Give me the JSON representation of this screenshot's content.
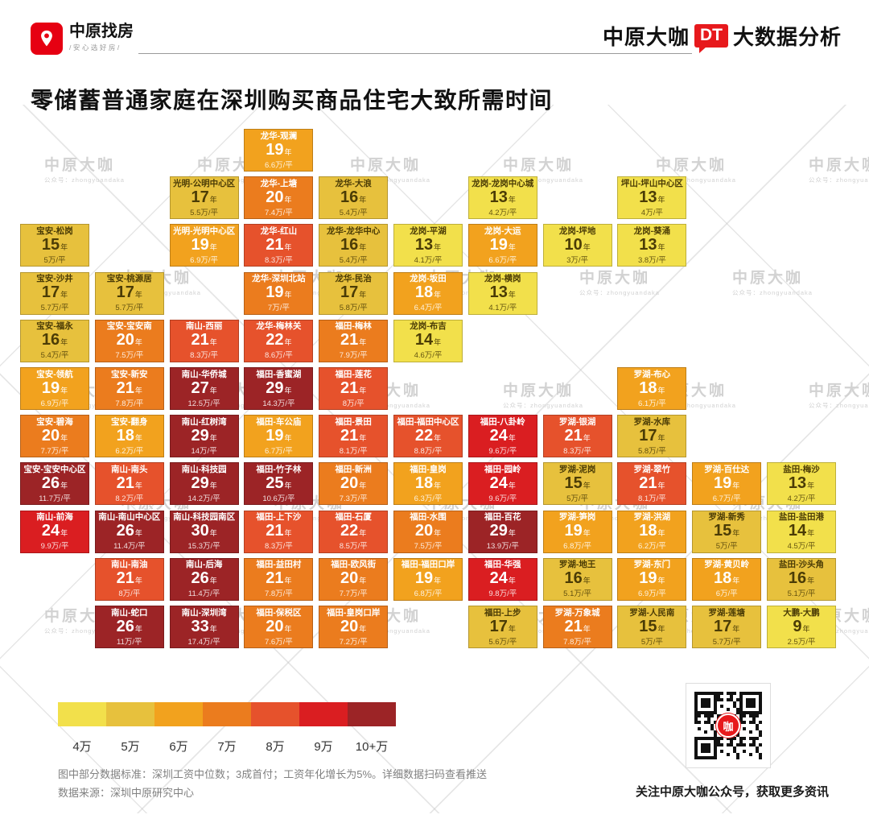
{
  "header": {
    "logo_text": "中原找房",
    "logo_tagline": "/安心选好房/",
    "brand_part1": "中原大咖",
    "brand_dt": "DT",
    "brand_part2": "大数据分析",
    "title": "零储蓄普通家庭在深圳购买商品住宅大致所需时间"
  },
  "watermark": {
    "line1": "中原大咖",
    "line2": "公众号：zhongyuandaka"
  },
  "chart_data": {
    "type": "heatmap",
    "title": "零储蓄普通家庭在深圳购买商品住宅大致所需时间",
    "description": "Tile cartogram of Shenzhen districts: years needed to buy a home (zero savings) and price per square meter",
    "units": {
      "years": "年",
      "price": "万/平"
    },
    "grid": {
      "rows": 11,
      "cols": 11
    },
    "buckets": [
      {
        "label": "4万",
        "color": "#F2E04B",
        "text": "#4b3c06"
      },
      {
        "label": "5万",
        "color": "#E7C13D",
        "text": "#4b3c06"
      },
      {
        "label": "6万",
        "color": "#F2A21E",
        "text": "#ffffff"
      },
      {
        "label": "7万",
        "color": "#EB7C1E",
        "text": "#ffffff"
      },
      {
        "label": "8万",
        "color": "#E6522C",
        "text": "#ffffff"
      },
      {
        "label": "9万",
        "color": "#DA1E21",
        "text": "#ffffff"
      },
      {
        "label": "10+万",
        "color": "#9C2426",
        "text": "#ffffff"
      }
    ],
    "tiles": [
      {
        "row": 1,
        "col": 4,
        "name": "龙华-观澜",
        "years": "19",
        "price": "6.6万/平",
        "bucket": 2
      },
      {
        "row": 2,
        "col": 3,
        "name": "光明-公明中心区",
        "years": "17",
        "price": "5.5万/平",
        "bucket": 1
      },
      {
        "row": 2,
        "col": 4,
        "name": "龙华-上塘",
        "years": "20",
        "price": "7.4万/平",
        "bucket": 3
      },
      {
        "row": 2,
        "col": 5,
        "name": "龙华-大浪",
        "years": "16",
        "price": "5.4万/平",
        "bucket": 1
      },
      {
        "row": 2,
        "col": 7,
        "name": "龙岗-龙岗中心城",
        "years": "13",
        "price": "4.2万/平",
        "bucket": 0
      },
      {
        "row": 2,
        "col": 9,
        "name": "坪山-坪山中心区",
        "years": "13",
        "price": "4万/平",
        "bucket": 0
      },
      {
        "row": 3,
        "col": 1,
        "name": "宝安-松岗",
        "years": "15",
        "price": "5万/平",
        "bucket": 1
      },
      {
        "row": 3,
        "col": 3,
        "name": "光明-光明中心区",
        "years": "19",
        "price": "6.9万/平",
        "bucket": 2
      },
      {
        "row": 3,
        "col": 4,
        "name": "龙华-红山",
        "years": "21",
        "price": "8.3万/平",
        "bucket": 4
      },
      {
        "row": 3,
        "col": 5,
        "name": "龙华-龙华中心",
        "years": "16",
        "price": "5.4万/平",
        "bucket": 1
      },
      {
        "row": 3,
        "col": 6,
        "name": "龙岗-平湖",
        "years": "13",
        "price": "4.1万/平",
        "bucket": 0
      },
      {
        "row": 3,
        "col": 7,
        "name": "龙岗-大运",
        "years": "19",
        "price": "6.6万/平",
        "bucket": 2
      },
      {
        "row": 3,
        "col": 8,
        "name": "龙岗-坪地",
        "years": "10",
        "price": "3万/平",
        "bucket": 0
      },
      {
        "row": 3,
        "col": 9,
        "name": "龙岗-葵涌",
        "years": "13",
        "price": "3.8万/平",
        "bucket": 0
      },
      {
        "row": 4,
        "col": 1,
        "name": "宝安-沙井",
        "years": "17",
        "price": "5.7万/平",
        "bucket": 1
      },
      {
        "row": 4,
        "col": 2,
        "name": "宝安-桃源居",
        "years": "17",
        "price": "5.7万/平",
        "bucket": 1
      },
      {
        "row": 4,
        "col": 4,
        "name": "龙华-深圳北站",
        "years": "19",
        "price": "7万/平",
        "bucket": 3
      },
      {
        "row": 4,
        "col": 5,
        "name": "龙华-民治",
        "years": "17",
        "price": "5.8万/平",
        "bucket": 1
      },
      {
        "row": 4,
        "col": 6,
        "name": "龙岗-坂田",
        "years": "18",
        "price": "6.4万/平",
        "bucket": 2
      },
      {
        "row": 4,
        "col": 7,
        "name": "龙岗-横岗",
        "years": "13",
        "price": "4.1万/平",
        "bucket": 0
      },
      {
        "row": 5,
        "col": 1,
        "name": "宝安-福永",
        "years": "16",
        "price": "5.4万/平",
        "bucket": 1
      },
      {
        "row": 5,
        "col": 2,
        "name": "宝安-宝安南",
        "years": "20",
        "price": "7.5万/平",
        "bucket": 3
      },
      {
        "row": 5,
        "col": 3,
        "name": "南山-西丽",
        "years": "21",
        "price": "8.3万/平",
        "bucket": 4
      },
      {
        "row": 5,
        "col": 4,
        "name": "龙华-梅林关",
        "years": "22",
        "price": "8.6万/平",
        "bucket": 4
      },
      {
        "row": 5,
        "col": 5,
        "name": "福田-梅林",
        "years": "21",
        "price": "7.9万/平",
        "bucket": 3
      },
      {
        "row": 5,
        "col": 6,
        "name": "龙岗-布吉",
        "years": "14",
        "price": "4.6万/平",
        "bucket": 0
      },
      {
        "row": 6,
        "col": 1,
        "name": "宝安-领航",
        "years": "19",
        "price": "6.9万/平",
        "bucket": 2
      },
      {
        "row": 6,
        "col": 2,
        "name": "宝安-新安",
        "years": "21",
        "price": "7.8万/平",
        "bucket": 3
      },
      {
        "row": 6,
        "col": 3,
        "name": "南山-华侨城",
        "years": "27",
        "price": "12.5万/平",
        "bucket": 6
      },
      {
        "row": 6,
        "col": 4,
        "name": "福田-香蜜湖",
        "years": "29",
        "price": "14.3万/平",
        "bucket": 6
      },
      {
        "row": 6,
        "col": 5,
        "name": "福田-莲花",
        "years": "21",
        "price": "8万/平",
        "bucket": 4
      },
      {
        "row": 6,
        "col": 9,
        "name": "罗湖-布心",
        "years": "18",
        "price": "6.1万/平",
        "bucket": 2
      },
      {
        "row": 7,
        "col": 1,
        "name": "宝安-碧海",
        "years": "20",
        "price": "7.7万/平",
        "bucket": 3
      },
      {
        "row": 7,
        "col": 2,
        "name": "宝安-翻身",
        "years": "18",
        "price": "6.2万/平",
        "bucket": 2
      },
      {
        "row": 7,
        "col": 3,
        "name": "南山-红树湾",
        "years": "29",
        "price": "14万/平",
        "bucket": 6
      },
      {
        "row": 7,
        "col": 4,
        "name": "福田-车公庙",
        "years": "19",
        "price": "6.7万/平",
        "bucket": 2
      },
      {
        "row": 7,
        "col": 5,
        "name": "福田-景田",
        "years": "21",
        "price": "8.1万/平",
        "bucket": 4
      },
      {
        "row": 7,
        "col": 6,
        "name": "福田-福田中心区",
        "years": "22",
        "price": "8.8万/平",
        "bucket": 4
      },
      {
        "row": 7,
        "col": 7,
        "name": "福田-八卦岭",
        "years": "24",
        "price": "9.6万/平",
        "bucket": 5
      },
      {
        "row": 7,
        "col": 8,
        "name": "罗湖-银湖",
        "years": "21",
        "price": "8.3万/平",
        "bucket": 4
      },
      {
        "row": 7,
        "col": 9,
        "name": "罗湖-水库",
        "years": "17",
        "price": "5.8万/平",
        "bucket": 1
      },
      {
        "row": 8,
        "col": 1,
        "name": "宝安-宝安中心区",
        "years": "26",
        "price": "11.7万/平",
        "bucket": 6
      },
      {
        "row": 8,
        "col": 2,
        "name": "南山-南头",
        "years": "21",
        "price": "8.2万/平",
        "bucket": 4
      },
      {
        "row": 8,
        "col": 3,
        "name": "南山-科技园",
        "years": "29",
        "price": "14.2万/平",
        "bucket": 6
      },
      {
        "row": 8,
        "col": 4,
        "name": "福田-竹子林",
        "years": "25",
        "price": "10.6万/平",
        "bucket": 6
      },
      {
        "row": 8,
        "col": 5,
        "name": "福田-新洲",
        "years": "20",
        "price": "7.3万/平",
        "bucket": 3
      },
      {
        "row": 8,
        "col": 6,
        "name": "福田-皇岗",
        "years": "18",
        "price": "6.3万/平",
        "bucket": 2
      },
      {
        "row": 8,
        "col": 7,
        "name": "福田-园岭",
        "years": "24",
        "price": "9.6万/平",
        "bucket": 5
      },
      {
        "row": 8,
        "col": 8,
        "name": "罗湖-泥岗",
        "years": "15",
        "price": "5万/平",
        "bucket": 1
      },
      {
        "row": 8,
        "col": 9,
        "name": "罗湖-翠竹",
        "years": "21",
        "price": "8.1万/平",
        "bucket": 4
      },
      {
        "row": 8,
        "col": 10,
        "name": "罗湖-百仕达",
        "years": "19",
        "price": "6.7万/平",
        "bucket": 2
      },
      {
        "row": 8,
        "col": 11,
        "name": "盐田-梅沙",
        "years": "13",
        "price": "4.2万/平",
        "bucket": 0
      },
      {
        "row": 9,
        "col": 1,
        "name": "南山-前海",
        "years": "24",
        "price": "9.9万/平",
        "bucket": 5
      },
      {
        "row": 9,
        "col": 2,
        "name": "南山-南山中心区",
        "years": "26",
        "price": "11.4万/平",
        "bucket": 6
      },
      {
        "row": 9,
        "col": 3,
        "name": "南山-科技园南区",
        "years": "30",
        "price": "15.3万/平",
        "bucket": 6
      },
      {
        "row": 9,
        "col": 4,
        "name": "福田-上下沙",
        "years": "21",
        "price": "8.3万/平",
        "bucket": 4
      },
      {
        "row": 9,
        "col": 5,
        "name": "福田-石厦",
        "years": "22",
        "price": "8.5万/平",
        "bucket": 4
      },
      {
        "row": 9,
        "col": 6,
        "name": "福田-水围",
        "years": "20",
        "price": "7.5万/平",
        "bucket": 3
      },
      {
        "row": 9,
        "col": 7,
        "name": "福田-百花",
        "years": "29",
        "price": "13.9万/平",
        "bucket": 6
      },
      {
        "row": 9,
        "col": 8,
        "name": "罗湖-笋岗",
        "years": "19",
        "price": "6.8万/平",
        "bucket": 2
      },
      {
        "row": 9,
        "col": 9,
        "name": "罗湖-洪湖",
        "years": "18",
        "price": "6.2万/平",
        "bucket": 2
      },
      {
        "row": 9,
        "col": 10,
        "name": "罗湖-新秀",
        "years": "15",
        "price": "5万/平",
        "bucket": 1
      },
      {
        "row": 9,
        "col": 11,
        "name": "盐田-盐田港",
        "years": "14",
        "price": "4.5万/平",
        "bucket": 0
      },
      {
        "row": 10,
        "col": 2,
        "name": "南山-南油",
        "years": "21",
        "price": "8万/平",
        "bucket": 4
      },
      {
        "row": 10,
        "col": 3,
        "name": "南山-后海",
        "years": "26",
        "price": "11.4万/平",
        "bucket": 6
      },
      {
        "row": 10,
        "col": 4,
        "name": "福田-益田村",
        "years": "21",
        "price": "7.8万/平",
        "bucket": 3
      },
      {
        "row": 10,
        "col": 5,
        "name": "福田-欧风街",
        "years": "20",
        "price": "7.7万/平",
        "bucket": 3
      },
      {
        "row": 10,
        "col": 6,
        "name": "福田-福田口岸",
        "years": "19",
        "price": "6.8万/平",
        "bucket": 2
      },
      {
        "row": 10,
        "col": 7,
        "name": "福田-华强",
        "years": "24",
        "price": "9.8万/平",
        "bucket": 5
      },
      {
        "row": 10,
        "col": 8,
        "name": "罗湖-地王",
        "years": "16",
        "price": "5.1万/平",
        "bucket": 1
      },
      {
        "row": 10,
        "col": 9,
        "name": "罗湖-东门",
        "years": "19",
        "price": "6.9万/平",
        "bucket": 2
      },
      {
        "row": 10,
        "col": 10,
        "name": "罗湖-黄贝岭",
        "years": "18",
        "price": "6万/平",
        "bucket": 2
      },
      {
        "row": 10,
        "col": 11,
        "name": "盐田-沙头角",
        "years": "16",
        "price": "5.1万/平",
        "bucket": 1
      },
      {
        "row": 11,
        "col": 2,
        "name": "南山-蛇口",
        "years": "26",
        "price": "11万/平",
        "bucket": 6
      },
      {
        "row": 11,
        "col": 3,
        "name": "南山-深圳湾",
        "years": "33",
        "price": "17.4万/平",
        "bucket": 6
      },
      {
        "row": 11,
        "col": 4,
        "name": "福田-保税区",
        "years": "20",
        "price": "7.6万/平",
        "bucket": 3
      },
      {
        "row": 11,
        "col": 5,
        "name": "福田-皇岗口岸",
        "years": "20",
        "price": "7.2万/平",
        "bucket": 3
      },
      {
        "row": 11,
        "col": 7,
        "name": "福田-上步",
        "years": "17",
        "price": "5.6万/平",
        "bucket": 1
      },
      {
        "row": 11,
        "col": 8,
        "name": "罗湖-万象城",
        "years": "21",
        "price": "7.8万/平",
        "bucket": 3
      },
      {
        "row": 11,
        "col": 9,
        "name": "罗湖-人民南",
        "years": "15",
        "price": "5万/平",
        "bucket": 1
      },
      {
        "row": 11,
        "col": 10,
        "name": "罗湖-莲塘",
        "years": "17",
        "price": "5.7万/平",
        "bucket": 1
      },
      {
        "row": 11,
        "col": 11,
        "name": "大鹏-大鹏",
        "years": "9",
        "price": "2.5万/平",
        "bucket": 0
      }
    ],
    "legend_position": "bottom-left"
  },
  "footer": {
    "note1": "图中部分数据标准：深圳工资中位数；3成首付；工资年化增长为5%。详细数据扫码查看推送",
    "note2": "数据来源：深圳中原研究中心",
    "qr_caption": "关注中原大咖公众号，获取更多资讯",
    "qr_center": "咖"
  }
}
